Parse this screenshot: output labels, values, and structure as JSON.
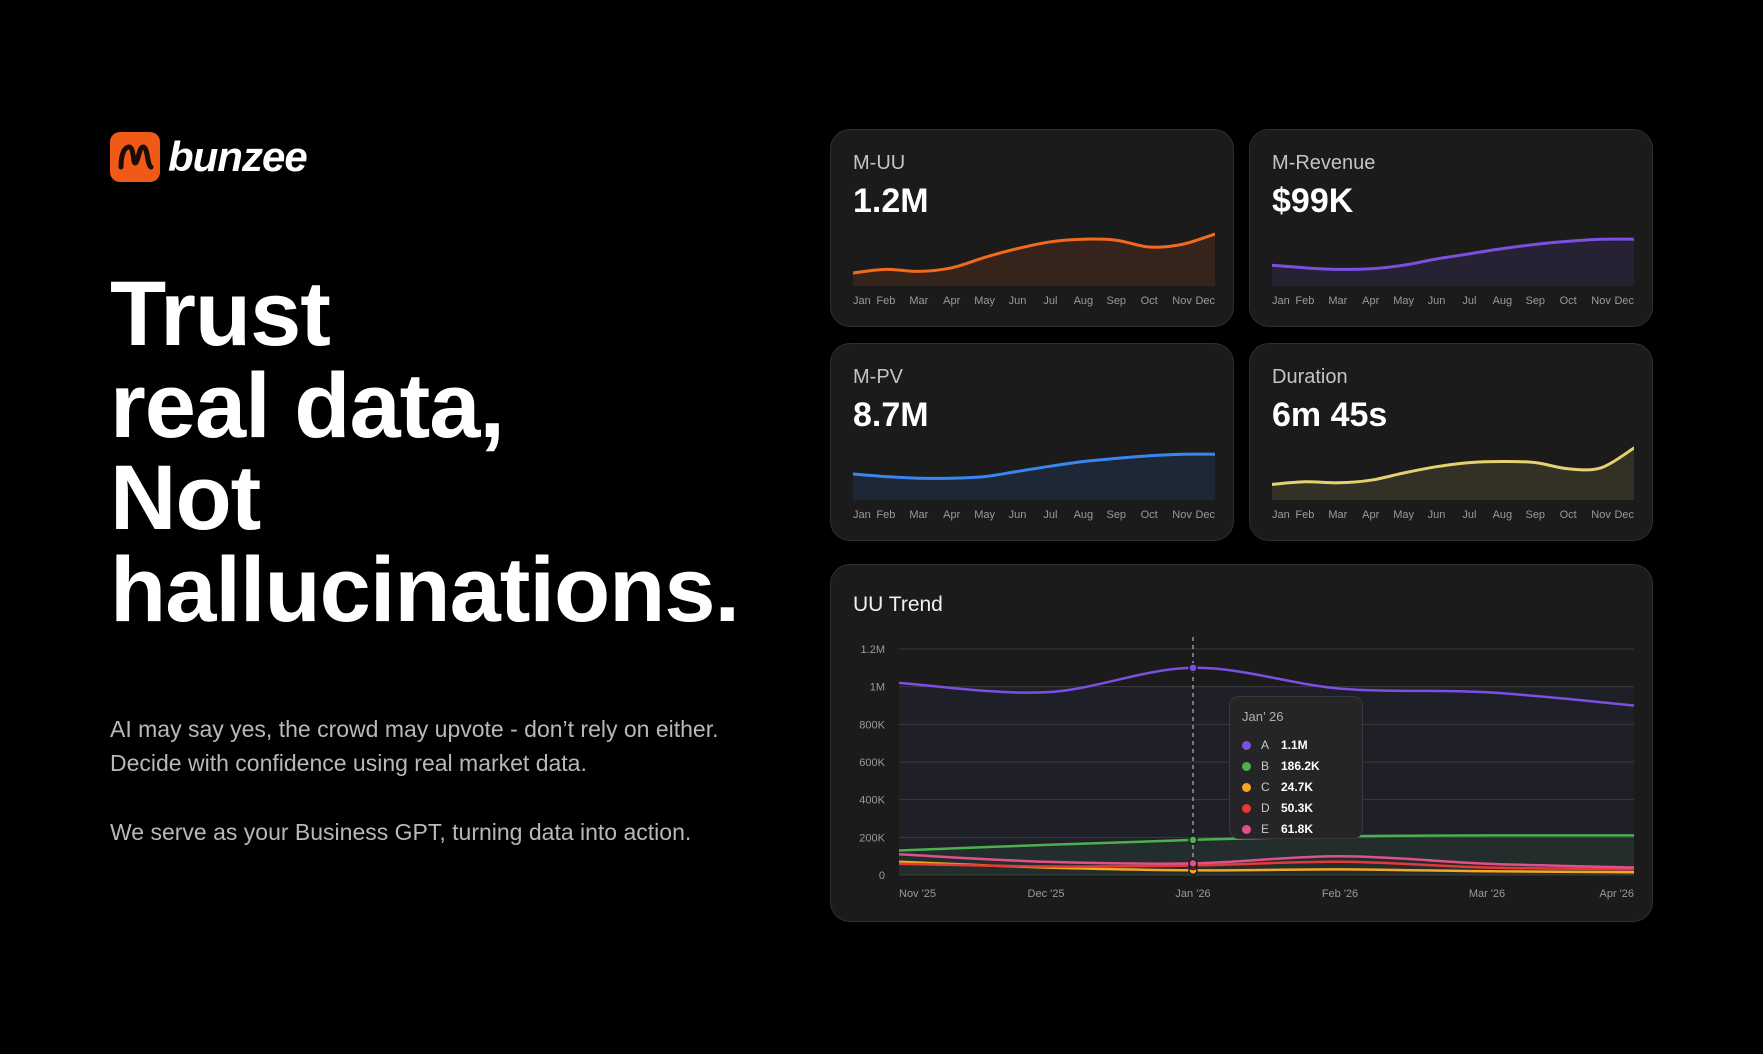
{
  "brand": {
    "name": "bunzee",
    "color": "#f05a16"
  },
  "hero": {
    "headline_lines": [
      "Trust",
      "real data,",
      "Not",
      "hallucinations."
    ],
    "paragraph1": "AI may say yes, the crowd may upvote - don’t rely on either. Decide with confidence using real market data.",
    "paragraph2": "We serve as your Business GPT, turning data into action."
  },
  "months": [
    "Jan",
    "Feb",
    "Mar",
    "Apr",
    "May",
    "Jun",
    "Jul",
    "Aug",
    "Sep",
    "Oct",
    "Nov",
    "Dec"
  ],
  "metrics": [
    {
      "label": "M-UU",
      "value": "1.2M",
      "color": "#f26a1b",
      "trend": [
        0.25,
        0.32,
        0.28,
        0.35,
        0.55,
        0.72,
        0.85,
        0.9,
        0.88,
        0.75,
        0.8,
        1.0
      ]
    },
    {
      "label": "M-Revenue",
      "value": "$99K",
      "color": "#7b4fe0",
      "trend": [
        0.4,
        0.35,
        0.32,
        0.33,
        0.4,
        0.52,
        0.62,
        0.72,
        0.8,
        0.86,
        0.9,
        0.9
      ]
    },
    {
      "label": "M-PV",
      "value": "8.7M",
      "color": "#3a86f0",
      "trend": [
        0.5,
        0.45,
        0.42,
        0.42,
        0.45,
        0.55,
        0.65,
        0.74,
        0.8,
        0.85,
        0.88,
        0.88
      ]
    },
    {
      "label": "Duration",
      "value": "6m 45s",
      "color": "#e6d070",
      "trend": [
        0.3,
        0.35,
        0.33,
        0.38,
        0.52,
        0.64,
        0.72,
        0.74,
        0.72,
        0.6,
        0.62,
        1.0
      ]
    }
  ],
  "trend": {
    "title": "UU Trend",
    "y_ticks": [
      "1.2M",
      "1M",
      "800K",
      "600K",
      "400K",
      "200K",
      "0"
    ],
    "x_ticks": [
      "Nov '25",
      "Dec '25",
      "Jan '26",
      "Feb '26",
      "Mar '26",
      "Apr '26"
    ],
    "tooltip": {
      "title": "Jan’ 26",
      "rows": [
        {
          "key": "A",
          "value": "1.1M",
          "color": "#7b4fe0"
        },
        {
          "key": "B",
          "value": "186.2K",
          "color": "#4caf50"
        },
        {
          "key": "C",
          "value": "24.7K",
          "color": "#f5a623"
        },
        {
          "key": "D",
          "value": "50.3K",
          "color": "#e53935"
        },
        {
          "key": "E",
          "value": "61.8K",
          "color": "#e0508c"
        }
      ]
    }
  },
  "chart_data": {
    "type": "line",
    "title": "UU Trend",
    "x": [
      "Nov '25",
      "Dec '25",
      "Jan '26",
      "Feb '26",
      "Mar '26",
      "Apr '26"
    ],
    "ylim": [
      0,
      1200000
    ],
    "series": [
      {
        "name": "A",
        "color": "#7b4fe0",
        "values": [
          1020000,
          970000,
          1100000,
          990000,
          970000,
          900000
        ]
      },
      {
        "name": "B",
        "color": "#4caf50",
        "values": [
          130000,
          160000,
          186200,
          205000,
          210000,
          210000
        ]
      },
      {
        "name": "C",
        "color": "#f5a623",
        "values": [
          70000,
          40000,
          24700,
          30000,
          20000,
          15000
        ]
      },
      {
        "name": "D",
        "color": "#e53935",
        "values": [
          60000,
          45000,
          50300,
          70000,
          40000,
          30000
        ]
      },
      {
        "name": "E",
        "color": "#e0508c",
        "values": [
          110000,
          70000,
          61800,
          100000,
          60000,
          40000
        ]
      }
    ]
  }
}
